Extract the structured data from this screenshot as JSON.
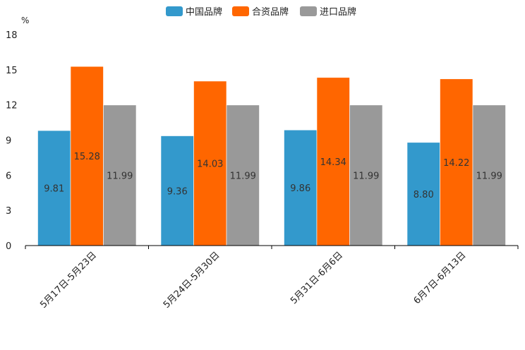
{
  "chart_data": {
    "type": "bar",
    "title": "",
    "xlabel": "",
    "ylabel": "%",
    "ylim": [
      0,
      18
    ],
    "yticks": [
      0,
      3,
      6,
      9,
      12,
      15,
      18
    ],
    "categories": [
      "5月17日-5月23日",
      "5月24日-5月30日",
      "5月31日-6月6日",
      "6月7日-6月13日"
    ],
    "series": [
      {
        "name": "中国品牌",
        "color": "#3399cc",
        "values": [
          9.81,
          9.36,
          9.86,
          8.8
        ],
        "labels": [
          "9.81",
          "9.36",
          "9.86",
          "8.80"
        ]
      },
      {
        "name": "合资品牌",
        "color": "#ff6600",
        "values": [
          15.28,
          14.03,
          14.34,
          14.22
        ],
        "labels": [
          "15.28",
          "14.03",
          "14.34",
          "14.22"
        ]
      },
      {
        "name": "进口品牌",
        "color": "#999999",
        "values": [
          11.99,
          11.99,
          11.99,
          11.99
        ],
        "labels": [
          "11.99",
          "11.99",
          "11.99",
          "11.99"
        ]
      }
    ],
    "legend_position": "top-center",
    "grid": false
  }
}
